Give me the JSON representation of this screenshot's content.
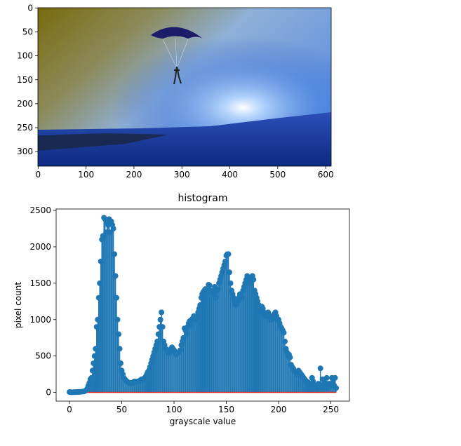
{
  "chart_data": [
    {
      "type": "image",
      "xlim": [
        -0.5,
        611.5
      ],
      "ylim": [
        330.5,
        -0.5
      ],
      "xticks": [
        0,
        100,
        200,
        300,
        400,
        500,
        600
      ],
      "yticks": [
        0,
        50,
        100,
        150,
        200,
        250,
        300
      ]
    },
    {
      "type": "stem",
      "title": "histogram",
      "x_label": "grayscale value",
      "y_label": "pixel count",
      "color": "#1f77b4",
      "baseline_color": "#d62728",
      "xlim": [
        -12.75,
        267.75
      ],
      "ylim": [
        -120,
        2520
      ],
      "xticks": [
        0,
        50,
        100,
        150,
        200,
        250
      ],
      "yticks": [
        0,
        500,
        1000,
        1500,
        2000,
        2500
      ],
      "x": [
        0,
        1,
        2,
        3,
        4,
        5,
        6,
        7,
        8,
        9,
        10,
        11,
        12,
        13,
        14,
        15,
        16,
        17,
        18,
        19,
        20,
        21,
        22,
        23,
        24,
        25,
        26,
        27,
        28,
        29,
        30,
        31,
        32,
        33,
        34,
        35,
        36,
        37,
        38,
        39,
        40,
        41,
        42,
        43,
        44,
        45,
        46,
        47,
        48,
        49,
        50,
        51,
        52,
        53,
        54,
        55,
        56,
        57,
        58,
        59,
        60,
        61,
        62,
        63,
        64,
        65,
        66,
        67,
        68,
        69,
        70,
        71,
        72,
        73,
        74,
        75,
        76,
        77,
        78,
        79,
        80,
        81,
        82,
        83,
        84,
        85,
        86,
        87,
        88,
        89,
        90,
        91,
        92,
        93,
        94,
        95,
        96,
        97,
        98,
        99,
        100,
        101,
        102,
        103,
        104,
        105,
        106,
        107,
        108,
        109,
        110,
        111,
        112,
        113,
        114,
        115,
        116,
        117,
        118,
        119,
        120,
        121,
        122,
        123,
        124,
        125,
        126,
        127,
        128,
        129,
        130,
        131,
        132,
        133,
        134,
        135,
        136,
        137,
        138,
        139,
        140,
        141,
        142,
        143,
        144,
        145,
        146,
        147,
        148,
        149,
        150,
        151,
        152,
        153,
        154,
        155,
        156,
        157,
        158,
        159,
        160,
        161,
        162,
        163,
        164,
        165,
        166,
        167,
        168,
        169,
        170,
        171,
        172,
        173,
        174,
        175,
        176,
        177,
        178,
        179,
        180,
        181,
        182,
        183,
        184,
        185,
        186,
        187,
        188,
        189,
        190,
        191,
        192,
        193,
        194,
        195,
        196,
        197,
        198,
        199,
        200,
        201,
        202,
        203,
        204,
        205,
        206,
        207,
        208,
        209,
        210,
        211,
        212,
        213,
        214,
        215,
        216,
        217,
        218,
        219,
        220,
        221,
        222,
        223,
        224,
        225,
        226,
        227,
        228,
        229,
        230,
        231,
        232,
        233,
        234,
        235,
        236,
        237,
        238,
        239,
        240,
        241,
        242,
        243,
        244,
        245,
        246,
        247,
        248,
        249,
        250,
        251,
        252,
        253,
        254,
        255
      ],
      "values": [
        5,
        3,
        2,
        2,
        3,
        3,
        4,
        5,
        5,
        6,
        8,
        8,
        10,
        12,
        14,
        20,
        30,
        50,
        90,
        130,
        180,
        200,
        300,
        400,
        500,
        600,
        900,
        1000,
        1300,
        1500,
        1800,
        2100,
        2150,
        2400,
        2380,
        2200,
        2350,
        2300,
        2380,
        2200,
        2350,
        2300,
        2250,
        1900,
        1600,
        1300,
        1000,
        800,
        600,
        400,
        300,
        250,
        200,
        180,
        160,
        150,
        140,
        130,
        130,
        120,
        130,
        140,
        150,
        150,
        140,
        150,
        150,
        160,
        170,
        180,
        180,
        190,
        200,
        220,
        250,
        280,
        300,
        350,
        400,
        450,
        500,
        550,
        600,
        650,
        700,
        800,
        900,
        1000,
        1100,
        900,
        700,
        650,
        600,
        580,
        560,
        540,
        550,
        600,
        620,
        600,
        580,
        550,
        520,
        540,
        550,
        560,
        580,
        650,
        700,
        750,
        880,
        850,
        800,
        900,
        950,
        980,
        920,
        1000,
        1020,
        1050,
        1000,
        1030,
        1050,
        1100,
        1150,
        1200,
        1300,
        1350,
        1380,
        1400,
        1420,
        1400,
        1380,
        1480,
        1470,
        1400,
        1380,
        1400,
        1350,
        1450,
        1300,
        1400,
        1420,
        1500,
        1550,
        1600,
        1650,
        1700,
        1750,
        1800,
        1880,
        1900,
        1900,
        1650,
        1500,
        1400,
        1350,
        1300,
        1250,
        1200,
        1220,
        1250,
        1300,
        1350,
        1340,
        1300,
        1400,
        1450,
        1500,
        1550,
        1600,
        1580,
        1550,
        1500,
        1580,
        1600,
        1550,
        1400,
        1350,
        1300,
        1250,
        1200,
        1150,
        1100,
        1180,
        1150,
        1100,
        1050,
        1050,
        1080,
        1100,
        1050,
        1000,
        1050,
        1000,
        1050,
        1080,
        1100,
        1050,
        1000,
        1000,
        950,
        900,
        880,
        850,
        820,
        700,
        600,
        550,
        500,
        520,
        480,
        380,
        350,
        330,
        300,
        280,
        260,
        250,
        300,
        280,
        260,
        240,
        220,
        200,
        180,
        160,
        150,
        140,
        120,
        100,
        120,
        200,
        150,
        100,
        80,
        60,
        50,
        120,
        60,
        330,
        100,
        180,
        60,
        150,
        100,
        200,
        60,
        120,
        80,
        100,
        200,
        150,
        100,
        200,
        60
      ]
    }
  ]
}
